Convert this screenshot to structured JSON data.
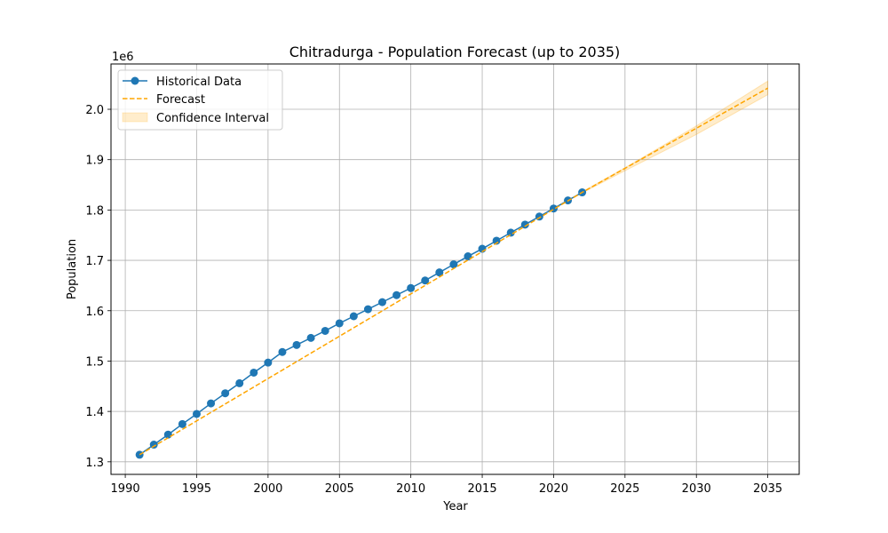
{
  "chart_data": {
    "type": "line",
    "title": "Chitradurga - Population Forecast (up to 2035)",
    "xlabel": "Year",
    "ylabel": "Population",
    "y_offset_label": "1e6",
    "xlim": [
      1989,
      2037.2
    ],
    "ylim": [
      1275000,
      2090000
    ],
    "x_ticks": [
      1990,
      1995,
      2000,
      2005,
      2010,
      2015,
      2020,
      2025,
      2030,
      2035
    ],
    "x_tick_labels": [
      "1990",
      "1995",
      "2000",
      "2005",
      "2010",
      "2015",
      "2020",
      "2025",
      "2030",
      "2035"
    ],
    "y_ticks": [
      1300000,
      1400000,
      1500000,
      1600000,
      1700000,
      1800000,
      1900000,
      2000000
    ],
    "y_tick_labels": [
      "1.3",
      "1.4",
      "1.5",
      "1.6",
      "1.7",
      "1.8",
      "1.9",
      "2.0"
    ],
    "grid": true,
    "legend_position": "top-left",
    "series": [
      {
        "name": "Historical Data",
        "style": "solid-line-with-markers",
        "color": "#1f77b4",
        "x": [
          1991,
          1992,
          1993,
          1994,
          1995,
          1996,
          1997,
          1998,
          1999,
          2000,
          2001,
          2002,
          2003,
          2004,
          2005,
          2006,
          2007,
          2008,
          2009,
          2010,
          2011,
          2012,
          2013,
          2014,
          2015,
          2016,
          2017,
          2018,
          2019,
          2020,
          2021,
          2022
        ],
        "y": [
          1314000,
          1334000,
          1354000,
          1375000,
          1395000,
          1416000,
          1436000,
          1456000,
          1477000,
          1497000,
          1518000,
          1532000,
          1546000,
          1560000,
          1575000,
          1589000,
          1603000,
          1617000,
          1631000,
          1645000,
          1660000,
          1676000,
          1692000,
          1708000,
          1723000,
          1739000,
          1755000,
          1771000,
          1787000,
          1803000,
          1819000,
          1835000
        ]
      },
      {
        "name": "Forecast",
        "style": "dashed-line",
        "color": "#ffa500",
        "x": [
          1991,
          2022,
          2035
        ],
        "y": [
          1314000,
          1835000,
          2042000
        ]
      }
    ],
    "confidence_interval": {
      "name": "Confidence Interval",
      "color": "#ffa500",
      "x": [
        2022,
        2025,
        2030,
        2035
      ],
      "lower": [
        1834000,
        1878000,
        1950000,
        2029000
      ],
      "upper": [
        1836000,
        1884000,
        1967000,
        2056000
      ]
    }
  }
}
